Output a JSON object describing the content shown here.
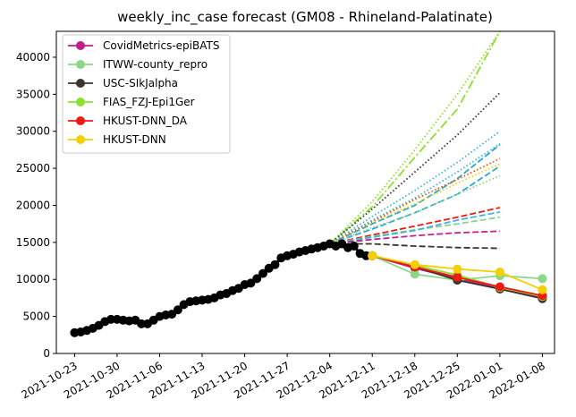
{
  "chart_data": {
    "type": "line",
    "title": "weekly_inc_case forecast (GM08 - Rhineland-Palatinate)",
    "xlabel": "",
    "ylabel": "",
    "x_range": [
      "2021-10-20",
      "2022-01-10"
    ],
    "ylim": [
      0,
      43500
    ],
    "x_ticks": [
      "2021-10-23",
      "2021-10-30",
      "2021-11-06",
      "2021-11-13",
      "2021-11-20",
      "2021-11-27",
      "2021-12-04",
      "2021-12-11",
      "2021-12-18",
      "2021-12-25",
      "2022-01-01",
      "2022-01-08"
    ],
    "y_ticks": [
      0,
      5000,
      10000,
      15000,
      20000,
      25000,
      30000,
      35000,
      40000
    ],
    "grid": false,
    "legend_position": "top-left",
    "observed": {
      "color": "#000000",
      "x": [
        "2021-10-23",
        "2021-10-24",
        "2021-10-25",
        "2021-10-26",
        "2021-10-27",
        "2021-10-28",
        "2021-10-29",
        "2021-10-30",
        "2021-10-31",
        "2021-11-01",
        "2021-11-02",
        "2021-11-03",
        "2021-11-04",
        "2021-11-05",
        "2021-11-06",
        "2021-11-07",
        "2021-11-08",
        "2021-11-09",
        "2021-11-10",
        "2021-11-11",
        "2021-11-12",
        "2021-11-13",
        "2021-11-14",
        "2021-11-15",
        "2021-11-16",
        "2021-11-17",
        "2021-11-18",
        "2021-11-19",
        "2021-11-20",
        "2021-11-21",
        "2021-11-22",
        "2021-11-23",
        "2021-11-24",
        "2021-11-25",
        "2021-11-26",
        "2021-11-27",
        "2021-11-28",
        "2021-11-29",
        "2021-11-30",
        "2021-12-01",
        "2021-12-02",
        "2021-12-03",
        "2021-12-04",
        "2021-12-05",
        "2021-12-06",
        "2021-12-07",
        "2021-12-08",
        "2021-12-09",
        "2021-12-10"
      ],
      "y": [
        2800,
        2900,
        3100,
        3400,
        3800,
        4300,
        4600,
        4600,
        4500,
        4400,
        4500,
        4000,
        4000,
        4500,
        5000,
        5200,
        5300,
        5900,
        6600,
        7000,
        7100,
        7200,
        7300,
        7500,
        7900,
        8100,
        8500,
        8800,
        9300,
        9500,
        10100,
        10800,
        11500,
        12000,
        12900,
        13200,
        13400,
        13700,
        13900,
        14100,
        14300,
        14500,
        14800,
        14500,
        14800,
        14300,
        14500,
        13500,
        13200
      ]
    },
    "model_x": [
      "2021-12-11",
      "2021-12-18",
      "2021-12-25",
      "2022-01-01",
      "2022-01-08"
    ],
    "series": [
      {
        "name": "CovidMetrics-epiBATS",
        "color": "#c1208a",
        "values": [
          13200,
          11500,
          10100,
          8800,
          7500
        ]
      },
      {
        "name": "ITWW-county_repro",
        "color": "#8bd68a",
        "values": [
          13200,
          10700,
          9900,
          10500,
          10100
        ]
      },
      {
        "name": "USC-SIkJalpha",
        "color": "#3d342c",
        "values": [
          13200,
          11700,
          9900,
          8700,
          7400
        ]
      },
      {
        "name": "FIAS_FZJ-Epi1Ger",
        "color": "#8ee02e",
        "values": [
          13200,
          11900,
          10600,
          8900,
          7700
        ]
      },
      {
        "name": "HKUST-DNN_DA",
        "color": "#ee1a10",
        "values": [
          13200,
          11700,
          10300,
          9000,
          7800
        ]
      },
      {
        "name": "HKUST-DNN",
        "color": "#f5cf05",
        "values": [
          13200,
          12000,
          11400,
          11000,
          8600
        ]
      }
    ],
    "forecast_x": [
      "2021-12-04",
      "2021-12-11",
      "2021-12-18",
      "2021-12-25",
      "2022-01-01"
    ],
    "forecast_lines": [
      {
        "color": "#8ee02e",
        "dash": "dashdot",
        "values": [
          14800,
          19800,
          26500,
          33000,
          43500
        ]
      },
      {
        "color": "#8ee02e",
        "dash": "dotted",
        "values": [
          14800,
          20500,
          27500,
          35000,
          43500
        ]
      },
      {
        "color": "#333333",
        "dash": "dotted",
        "values": [
          14800,
          19500,
          24500,
          29500,
          35200
        ]
      },
      {
        "color": "#3db3e0",
        "dash": "dotted",
        "values": [
          14800,
          18500,
          22000,
          25800,
          30000
        ]
      },
      {
        "color": "#3db3e0",
        "dash": "dotted",
        "values": [
          14800,
          18000,
          21000,
          24500,
          28300
        ]
      },
      {
        "color": "#2aa8d8",
        "dash": "dashed",
        "values": [
          14800,
          16800,
          19000,
          21500,
          25300
        ]
      },
      {
        "color": "#2aa8d8",
        "dash": "dashed",
        "values": [
          14800,
          17500,
          20000,
          23600,
          28200
        ]
      },
      {
        "color": "#f5cf05",
        "dash": "dotted",
        "values": [
          14800,
          17700,
          20200,
          23000,
          25600
        ]
      },
      {
        "color": "#ee5500",
        "dash": "dotted",
        "values": [
          14800,
          17800,
          20800,
          23500,
          26300
        ]
      },
      {
        "color": "#8bd68a",
        "dash": "dotted",
        "values": [
          14800,
          17000,
          19000,
          21500,
          24000
        ]
      },
      {
        "color": "#ee1a10",
        "dash": "dashed",
        "values": [
          14800,
          16000,
          17200,
          18400,
          19700
        ]
      },
      {
        "color": "#8bd68a",
        "dash": "dashed",
        "values": [
          14800,
          15800,
          16700,
          17500,
          18400
        ]
      },
      {
        "color": "#3db3e0",
        "dash": "dashed",
        "values": [
          14800,
          15700,
          16600,
          18000,
          19100
        ]
      },
      {
        "color": "#c1208a",
        "dash": "dashed",
        "values": [
          14800,
          15400,
          15900,
          16300,
          16500
        ]
      },
      {
        "color": "#3d342c",
        "dash": "dashed",
        "values": [
          14800,
          14800,
          14500,
          14300,
          14200
        ]
      }
    ]
  }
}
